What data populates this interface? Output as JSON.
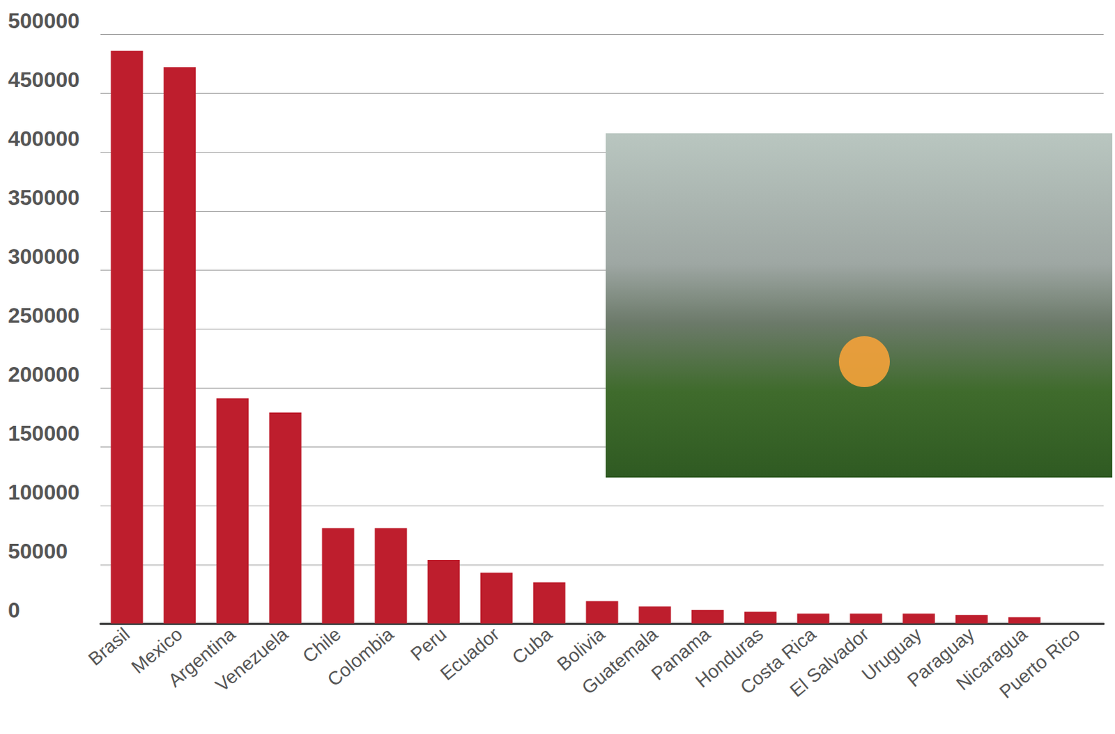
{
  "chart_data": {
    "type": "bar",
    "categories": [
      "Brasil",
      "Mexico",
      "Argentina",
      "Venezuela",
      "Chile",
      "Colombia",
      "Peru",
      "Ecuador",
      "Cuba",
      "Bolivia",
      "Guatemala",
      "Panama",
      "Honduras",
      "Costa Rica",
      "El Salvador",
      "Uruguay",
      "Paraguay",
      "Nicaragua",
      "Puerto Rico"
    ],
    "values": [
      486000,
      472000,
      191000,
      179000,
      81000,
      81000,
      54000,
      43000,
      35000,
      19000,
      14500,
      11500,
      10000,
      8400,
      8400,
      8400,
      7200,
      5400,
      0
    ],
    "color": "#be1e2d",
    "ylim": [
      0,
      500000
    ],
    "yticks": [
      0,
      50000,
      100000,
      150000,
      200000,
      250000,
      300000,
      350000,
      400000,
      450000,
      500000
    ],
    "grid": true
  }
}
